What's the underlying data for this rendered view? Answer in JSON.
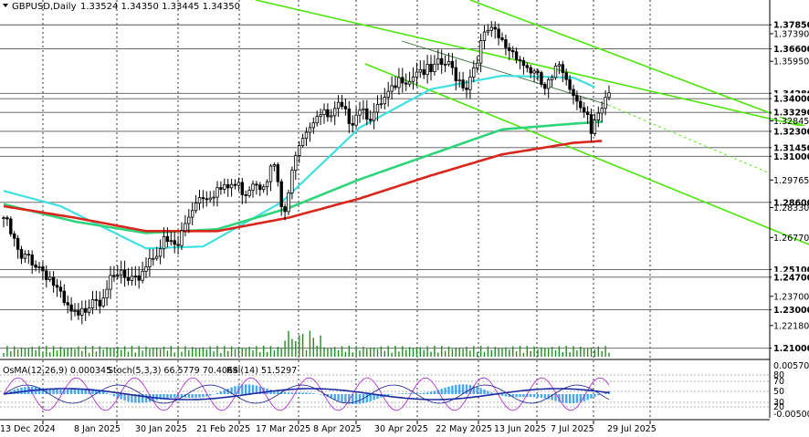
{
  "header": {
    "symbol": "GBPUSD,Daily",
    "ohlc": "1.33524 1.34350 1.33445 1.34350"
  },
  "indicator_header": {
    "osma": "OsMA(12,26,9) 0.000345",
    "stoch": "Stoch(5,3,3) 66.5779 70.4064",
    "rsi": "RSI(14) 51.5297"
  },
  "colors": {
    "background": "#ffffff",
    "candle": "#000000",
    "ma_cyan": "#3fe0e0",
    "ma_green": "#2ed47a",
    "ma_red": "#d9261c",
    "channel": "#4ee60a",
    "osma_bars": "#46a7f0",
    "macd_line": "#1a2aa0",
    "stoch_line": "#b01fd0",
    "volume": "#1f8f1f"
  },
  "chart_data": {
    "type": "candlestick",
    "symbol": "GBPUSD",
    "timeframe": "Daily",
    "x_tick_labels": [
      "13 Dec 2024",
      "8 Jan 2025",
      "30 Jan 2025",
      "21 Feb 2025",
      "17 Mar 2025",
      "8 Apr 2025",
      "30 Apr 2025",
      "22 May 2025",
      "13 Jun 2025",
      "7 Jul 2025",
      "29 Jul 2025"
    ],
    "y_tick_labels": [
      "1.37850",
      "1.37390",
      "1.36600",
      "1.35950",
      "1.34280",
      "1.34000",
      "1.33290",
      "1.32845",
      "1.32300",
      "1.31450",
      "1.31000",
      "1.29765",
      "1.28600",
      "1.28330",
      "1.26770",
      "1.25100",
      "1.24700",
      "1.23700",
      "1.23000",
      "1.22180",
      "1.21000"
    ],
    "ylim": [
      1.2065,
      1.3905
    ],
    "highlighted_levels": [
      1.3785,
      1.366,
      1.3428,
      1.34,
      1.3329,
      1.323,
      1.3145,
      1.31,
      1.286,
      1.251,
      1.247,
      1.23,
      1.21
    ],
    "close_path": [
      [
        0,
        1.278
      ],
      [
        3,
        1.265
      ],
      [
        5,
        1.255
      ],
      [
        7,
        1.258
      ],
      [
        9,
        1.254
      ],
      [
        11,
        1.251
      ],
      [
        13,
        1.247
      ],
      [
        15,
        1.24
      ],
      [
        17,
        1.232
      ],
      [
        19,
        1.228
      ],
      [
        21,
        1.225
      ],
      [
        23,
        1.231
      ],
      [
        25,
        1.238
      ],
      [
        27,
        1.236
      ],
      [
        29,
        1.243
      ],
      [
        31,
        1.245
      ],
      [
        33,
        1.249
      ],
      [
        35,
        1.243
      ],
      [
        37,
        1.244
      ],
      [
        39,
        1.251
      ],
      [
        41,
        1.257
      ],
      [
        43,
        1.261
      ],
      [
        45,
        1.265
      ],
      [
        47,
        1.264
      ],
      [
        49,
        1.263
      ],
      [
        50,
        1.27
      ],
      [
        52,
        1.279
      ],
      [
        54,
        1.288
      ],
      [
        56,
        1.29
      ],
      [
        58,
        1.291
      ],
      [
        60,
        1.293
      ],
      [
        62,
        1.292
      ],
      [
        64,
        1.295
      ],
      [
        66,
        1.294
      ],
      [
        68,
        1.292
      ],
      [
        70,
        1.298
      ],
      [
        72,
        1.296
      ],
      [
        74,
        1.3
      ],
      [
        76,
        1.305
      ],
      [
        78,
        1.283
      ],
      [
        79,
        1.281
      ],
      [
        80,
        1.288
      ],
      [
        82,
        1.314
      ],
      [
        84,
        1.323
      ],
      [
        86,
        1.327
      ],
      [
        88,
        1.333
      ],
      [
        90,
        1.331
      ],
      [
        92,
        1.329
      ],
      [
        94,
        1.335
      ],
      [
        96,
        1.331
      ],
      [
        98,
        1.33
      ],
      [
        100,
        1.337
      ],
      [
        102,
        1.333
      ],
      [
        104,
        1.331
      ],
      [
        106,
        1.336
      ],
      [
        108,
        1.341
      ],
      [
        110,
        1.345
      ],
      [
        112,
        1.352
      ],
      [
        114,
        1.351
      ],
      [
        116,
        1.356
      ],
      [
        118,
        1.355
      ],
      [
        120,
        1.353
      ],
      [
        122,
        1.357
      ],
      [
        124,
        1.358
      ],
      [
        126,
        1.355
      ],
      [
        128,
        1.35
      ],
      [
        130,
        1.347
      ],
      [
        132,
        1.357
      ],
      [
        134,
        1.368
      ],
      [
        136,
        1.375
      ],
      [
        138,
        1.373
      ],
      [
        140,
        1.369
      ],
      [
        142,
        1.366
      ],
      [
        144,
        1.364
      ],
      [
        146,
        1.358
      ],
      [
        148,
        1.355
      ],
      [
        150,
        1.35
      ],
      [
        152,
        1.345
      ],
      [
        154,
        1.349
      ],
      [
        156,
        1.358
      ],
      [
        158,
        1.353
      ],
      [
        160,
        1.342
      ],
      [
        162,
        1.339
      ],
      [
        164,
        1.331
      ],
      [
        165,
        1.32
      ],
      [
        166,
        1.326
      ],
      [
        168,
        1.333
      ],
      [
        170,
        1.343
      ]
    ],
    "series": [
      {
        "name": "",
        "values": [
          [
            0,
            1.292
          ],
          [
            16,
            1.284
          ],
          [
            40,
            1.262
          ],
          [
            56,
            1.263
          ],
          [
            78,
            1.286
          ],
          [
            100,
            1.325
          ],
          [
            120,
            1.345
          ],
          [
            140,
            1.352
          ],
          [
            160,
            1.351
          ],
          [
            166,
            1.346
          ]
        ]
      },
      {
        "name": "",
        "values": [
          [
            0,
            1.285
          ],
          [
            20,
            1.276
          ],
          [
            40,
            1.27
          ],
          [
            60,
            1.272
          ],
          [
            80,
            1.283
          ],
          [
            100,
            1.298
          ],
          [
            120,
            1.311
          ],
          [
            140,
            1.324
          ],
          [
            160,
            1.327
          ],
          [
            168,
            1.328
          ]
        ]
      },
      {
        "name": "",
        "values": [
          [
            0,
            1.284
          ],
          [
            20,
            1.278
          ],
          [
            40,
            1.271
          ],
          [
            60,
            1.271
          ],
          [
            80,
            1.278
          ],
          [
            100,
            1.288
          ],
          [
            120,
            1.3
          ],
          [
            140,
            1.311
          ],
          [
            160,
            1.317
          ],
          [
            168,
            1.318
          ]
        ]
      }
    ]
  }
}
